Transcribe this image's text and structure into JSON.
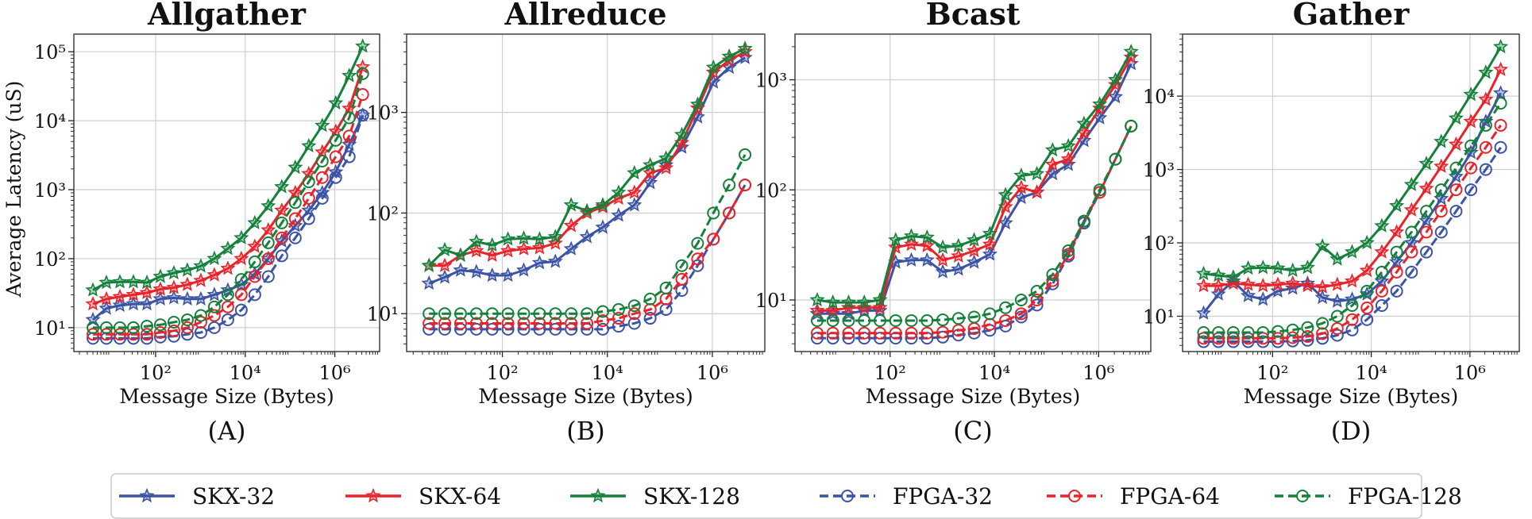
{
  "figure": {
    "ylabel": "Average Latency (uS)",
    "xlabel": "Message Size (Bytes)"
  },
  "legend": {
    "placement": "bottom",
    "entries": [
      {
        "label": "SKX-32",
        "color": "#3a53a4",
        "marker": "star",
        "dash": false
      },
      {
        "label": "SKX-64",
        "color": "#e8232a",
        "marker": "star",
        "dash": false
      },
      {
        "label": "SKX-128",
        "color": "#14813b",
        "marker": "star",
        "dash": false
      },
      {
        "label": "FPGA-32",
        "color": "#3a53a4",
        "marker": "circle",
        "dash": true
      },
      {
        "label": "FPGA-64",
        "color": "#e8232a",
        "marker": "circle",
        "dash": true
      },
      {
        "label": "FPGA-128",
        "color": "#14813b",
        "marker": "circle",
        "dash": true
      }
    ]
  },
  "chart_data": [
    {
      "type": "line",
      "panel": "(A)",
      "title": "Allgather",
      "xlabel": "Message Size (Bytes)",
      "ylabel": "Average Latency (uS)",
      "xscale": "log",
      "yscale": "log",
      "grid": true,
      "xlim": [
        1.5,
        10000000
      ],
      "ylim": [
        4.5,
        180000
      ],
      "xticks": [
        {
          "v": 100,
          "label": "10²"
        },
        {
          "v": 10000,
          "label": "10⁴"
        },
        {
          "v": 1000000,
          "label": "10⁶"
        }
      ],
      "yticks": [
        {
          "v": 10,
          "label": "10¹"
        },
        {
          "v": 100,
          "label": "10²"
        },
        {
          "v": 1000,
          "label": "10³"
        },
        {
          "v": 10000,
          "label": "10⁴"
        },
        {
          "v": 100000,
          "label": "10⁵"
        }
      ],
      "x": [
        4,
        8,
        16,
        32,
        64,
        128,
        256,
        512,
        1024,
        2048,
        4096,
        8192,
        16384,
        32768,
        65536,
        131072,
        262144,
        524288,
        1048576,
        2097152,
        4194304
      ],
      "series": [
        {
          "name": "SKX-32",
          "values": [
            13,
            19,
            21,
            22,
            22,
            26,
            27,
            26,
            26,
            30,
            35,
            42,
            60,
            100,
            180,
            300,
            500,
            900,
            1800,
            4500,
            12000
          ]
        },
        {
          "name": "SKX-64",
          "values": [
            22,
            26,
            28,
            30,
            32,
            36,
            38,
            42,
            48,
            58,
            72,
            100,
            150,
            260,
            500,
            900,
            1700,
            3500,
            7000,
            15000,
            60000
          ]
        },
        {
          "name": "SKX-128",
          "values": [
            35,
            45,
            46,
            46,
            45,
            55,
            62,
            68,
            78,
            100,
            140,
            200,
            330,
            580,
            1100,
            2100,
            4300,
            8500,
            18000,
            45000,
            120000
          ]
        },
        {
          "name": "FPGA-32",
          "values": [
            7,
            7,
            7,
            7,
            7,
            7.3,
            7.5,
            8,
            8.5,
            10,
            13,
            18,
            30,
            55,
            110,
            200,
            380,
            750,
            1500,
            3000,
            12000
          ]
        },
        {
          "name": "FPGA-64",
          "values": [
            8,
            8,
            8,
            8,
            8,
            8.5,
            9,
            10,
            12,
            15,
            20,
            30,
            55,
            100,
            200,
            380,
            750,
            1500,
            3000,
            6000,
            24000
          ]
        },
        {
          "name": "FPGA-128",
          "values": [
            10,
            10,
            10,
            10,
            10.5,
            11,
            12,
            13,
            15,
            20,
            30,
            50,
            90,
            170,
            330,
            650,
            1300,
            2600,
            5200,
            11000,
            48000
          ]
        }
      ]
    },
    {
      "type": "line",
      "panel": "(B)",
      "title": "Allreduce",
      "xlabel": "Message Size (Bytes)",
      "ylabel": "",
      "xscale": "log",
      "yscale": "log",
      "grid": true,
      "xlim": [
        1.5,
        10000000
      ],
      "ylim": [
        4.2,
        6000
      ],
      "xticks": [
        {
          "v": 100,
          "label": "10²"
        },
        {
          "v": 10000,
          "label": "10⁴"
        },
        {
          "v": 1000000,
          "label": "10⁶"
        }
      ],
      "yticks": [
        {
          "v": 10,
          "label": "10¹"
        },
        {
          "v": 100,
          "label": "10²"
        },
        {
          "v": 1000,
          "label": "10³"
        }
      ],
      "x": [
        4,
        8,
        16,
        32,
        64,
        128,
        256,
        512,
        1024,
        2048,
        4096,
        8192,
        16384,
        32768,
        65536,
        131072,
        262144,
        524288,
        1048576,
        2097152,
        4194304
      ],
      "series": [
        {
          "name": "SKX-32",
          "values": [
            20,
            23,
            27,
            26,
            24,
            24,
            27,
            32,
            33,
            44,
            58,
            72,
            95,
            120,
            200,
            300,
            450,
            900,
            2000,
            2800,
            3500
          ]
        },
        {
          "name": "SKX-64",
          "values": [
            30,
            30,
            38,
            42,
            38,
            42,
            44,
            45,
            50,
            75,
            100,
            115,
            140,
            160,
            250,
            280,
            500,
            1100,
            2500,
            3300,
            4000
          ]
        },
        {
          "name": "SKX-128",
          "values": [
            30,
            43,
            38,
            52,
            48,
            55,
            56,
            55,
            58,
            120,
            105,
            120,
            160,
            250,
            300,
            350,
            600,
            1200,
            2800,
            3600,
            4300
          ]
        },
        {
          "name": "FPGA-32",
          "values": [
            7,
            7,
            7,
            7,
            7,
            7,
            7,
            7,
            7,
            7,
            7,
            7,
            7.5,
            8,
            9,
            11,
            17,
            30,
            55,
            100,
            190
          ]
        },
        {
          "name": "FPGA-64",
          "values": [
            8,
            8,
            8,
            8,
            8,
            8,
            8,
            8,
            8,
            8,
            8,
            8.5,
            9,
            10,
            11,
            14,
            22,
            35,
            55,
            100,
            190
          ]
        },
        {
          "name": "FPGA-128",
          "values": [
            10,
            10,
            10,
            10,
            10,
            10,
            10,
            10,
            10,
            10,
            10,
            10.5,
            11,
            12,
            14,
            18,
            30,
            50,
            100,
            190,
            380
          ]
        }
      ]
    },
    {
      "type": "line",
      "panel": "(C)",
      "title": "Bcast",
      "xlabel": "Message Size (Bytes)",
      "ylabel": "",
      "xscale": "log",
      "yscale": "log",
      "grid": true,
      "xlim": [
        1.5,
        10000000
      ],
      "ylim": [
        3.4,
        2600
      ],
      "xticks": [
        {
          "v": 100,
          "label": "10²"
        },
        {
          "v": 10000,
          "label": "10⁴"
        },
        {
          "v": 1000000,
          "label": "10⁶"
        }
      ],
      "yticks": [
        {
          "v": 10,
          "label": "10¹"
        },
        {
          "v": 100,
          "label": "10²"
        },
        {
          "v": 1000,
          "label": "10³"
        }
      ],
      "x": [
        4,
        8,
        16,
        32,
        64,
        128,
        256,
        512,
        1024,
        2048,
        4096,
        8192,
        16384,
        32768,
        65536,
        131072,
        262144,
        524288,
        1048576,
        2097152,
        4194304
      ],
      "series": [
        {
          "name": "SKX-32",
          "values": [
            7.5,
            7.5,
            7.5,
            8,
            8,
            22,
            23,
            23,
            18,
            19,
            22,
            26,
            50,
            85,
            95,
            140,
            170,
            280,
            450,
            700,
            1400
          ]
        },
        {
          "name": "SKX-64",
          "values": [
            8,
            8,
            8.5,
            8.5,
            8.5,
            30,
            32,
            31,
            23,
            25,
            28,
            32,
            70,
            105,
            95,
            170,
            190,
            330,
            550,
            900,
            1600
          ]
        },
        {
          "name": "SKX-128",
          "values": [
            10,
            9.5,
            9.5,
            9.5,
            10,
            35,
            38,
            37,
            30,
            31,
            35,
            40,
            90,
            135,
            140,
            230,
            250,
            400,
            600,
            1000,
            1800
          ]
        },
        {
          "name": "FPGA-32",
          "values": [
            4.5,
            4.5,
            4.5,
            4.5,
            4.5,
            4.5,
            4.5,
            4.5,
            4.6,
            4.8,
            5,
            5.3,
            5.8,
            7,
            9,
            14,
            25,
            50,
            95,
            190,
            380
          ]
        },
        {
          "name": "FPGA-64",
          "values": [
            5,
            5,
            5,
            5,
            5,
            5,
            5,
            5,
            5.1,
            5.3,
            5.5,
            6,
            6.5,
            7.5,
            10,
            15,
            26,
            52,
            95,
            190,
            380
          ]
        },
        {
          "name": "FPGA-128",
          "values": [
            6.5,
            6.5,
            6.5,
            6.5,
            6.5,
            6.5,
            6.5,
            6.5,
            6.6,
            6.8,
            7,
            7.5,
            8.5,
            10,
            12,
            17,
            28,
            52,
            100,
            190,
            380
          ]
        }
      ]
    },
    {
      "type": "line",
      "panel": "(D)",
      "title": "Gather",
      "xlabel": "Message Size (Bytes)",
      "ylabel": "",
      "xscale": "log",
      "yscale": "log",
      "grid": true,
      "xlim": [
        1.5,
        10000000
      ],
      "ylim": [
        3.3,
        70000
      ],
      "xticks": [
        {
          "v": 100,
          "label": "10²"
        },
        {
          "v": 10000,
          "label": "10⁴"
        },
        {
          "v": 1000000,
          "label": "10⁶"
        }
      ],
      "yticks": [
        {
          "v": 10,
          "label": "10¹"
        },
        {
          "v": 100,
          "label": "10²"
        },
        {
          "v": 1000,
          "label": "10³"
        },
        {
          "v": 10000,
          "label": "10⁴"
        }
      ],
      "x": [
        4,
        8,
        16,
        32,
        64,
        128,
        256,
        512,
        1024,
        2048,
        4096,
        8192,
        16384,
        32768,
        65536,
        131072,
        262144,
        524288,
        1048576,
        2097152,
        4194304
      ],
      "series": [
        {
          "name": "SKX-32",
          "values": [
            11,
            20,
            30,
            19,
            17,
            22,
            24,
            28,
            18,
            16,
            17,
            20,
            30,
            55,
            100,
            200,
            400,
            800,
            1700,
            4500,
            11000
          ]
        },
        {
          "name": "SKX-64",
          "values": [
            26,
            26,
            28,
            27,
            26,
            27,
            28,
            26,
            25,
            27,
            30,
            42,
            75,
            140,
            280,
            550,
            1100,
            2200,
            4500,
            9000,
            23000
          ]
        },
        {
          "name": "SKX-128",
          "values": [
            38,
            36,
            34,
            45,
            46,
            45,
            42,
            46,
            90,
            60,
            75,
            100,
            170,
            320,
            620,
            1200,
            2400,
            5000,
            10500,
            21000,
            47000
          ]
        },
        {
          "name": "FPGA-32",
          "values": [
            4.5,
            4.5,
            4.5,
            4.5,
            4.5,
            4.5,
            4.6,
            4.7,
            5,
            5.5,
            6.5,
            9,
            14,
            22,
            40,
            75,
            140,
            270,
            530,
            1000,
            2000
          ]
        },
        {
          "name": "FPGA-64",
          "values": [
            5,
            5,
            5,
            5,
            5,
            5,
            5.1,
            5.3,
            5.8,
            6.8,
            9,
            13,
            22,
            40,
            75,
            140,
            270,
            530,
            1050,
            2000,
            4000
          ]
        },
        {
          "name": "FPGA-128",
          "values": [
            6,
            6,
            6,
            6,
            6,
            6.2,
            6.5,
            7,
            8,
            10,
            14,
            22,
            40,
            75,
            140,
            270,
            530,
            1050,
            2100,
            4000,
            8000
          ]
        }
      ]
    }
  ]
}
